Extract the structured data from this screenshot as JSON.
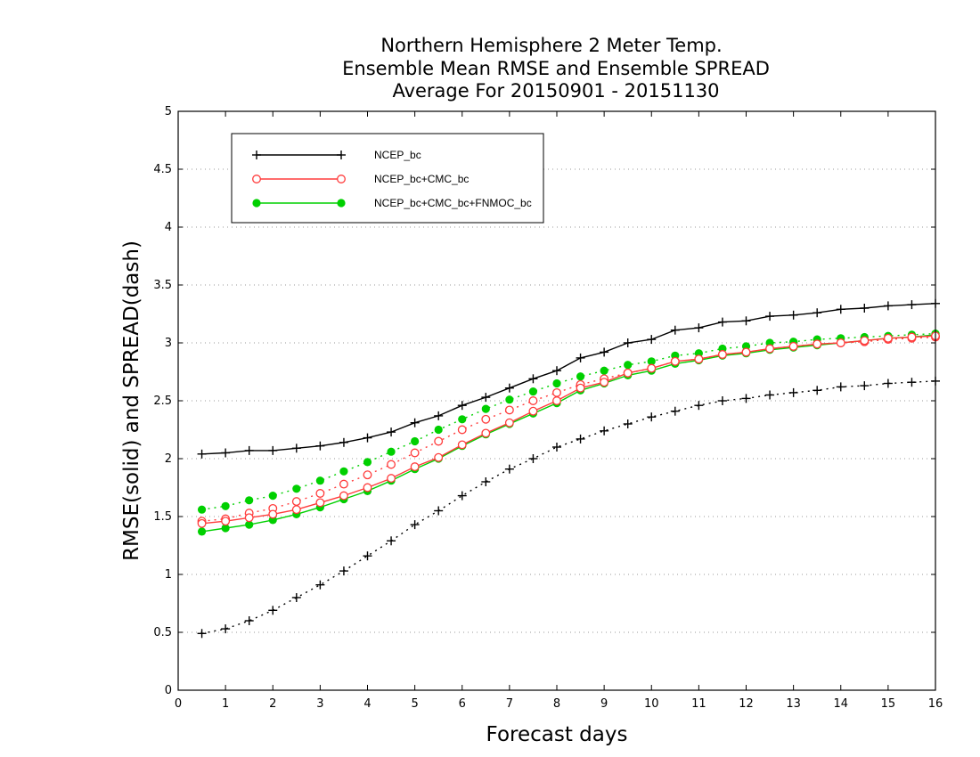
{
  "chart_data": {
    "type": "line",
    "title_lines": [
      "Northern Hemisphere 2 Meter Temp.",
      "Ensemble Mean RMSE and Ensemble SPREAD",
      "Average For 20150901 - 20151130"
    ],
    "xlabel": "Forecast days",
    "ylabel": "RMSE(solid) and SPREAD(dash)",
    "xlim": [
      0,
      16
    ],
    "ylim": [
      0,
      5
    ],
    "xticks": [
      "0",
      "1",
      "2",
      "3",
      "4",
      "5",
      "6",
      "7",
      "8",
      "9",
      "10",
      "11",
      "12",
      "13",
      "14",
      "15",
      "16"
    ],
    "yticks": [
      "0",
      "0.5",
      "1",
      "1.5",
      "2",
      "2.5",
      "3",
      "3.5",
      "4",
      "4.5",
      "5"
    ],
    "grid": "horizontal dotted",
    "legend_position": "top-left",
    "x": [
      0.5,
      1,
      1.5,
      2,
      2.5,
      3,
      3.5,
      4,
      4.5,
      5,
      5.5,
      6,
      6.5,
      7,
      7.5,
      8,
      8.5,
      9,
      9.5,
      10,
      10.5,
      11,
      11.5,
      12,
      12.5,
      13,
      13.5,
      14,
      14.5,
      15,
      15.5,
      16
    ],
    "series": [
      {
        "name": "NCEP_bc",
        "color": "#000000",
        "marker": "plus",
        "rmse": [
          2.04,
          2.05,
          2.07,
          2.07,
          2.09,
          2.11,
          2.14,
          2.18,
          2.23,
          2.31,
          2.37,
          2.46,
          2.53,
          2.61,
          2.69,
          2.76,
          2.87,
          2.92,
          3.0,
          3.03,
          3.11,
          3.13,
          3.18,
          3.19,
          3.23,
          3.24,
          3.26,
          3.29,
          3.3,
          3.32,
          3.33,
          3.34
        ],
        "spread": [
          0.49,
          0.53,
          0.6,
          0.69,
          0.8,
          0.91,
          1.03,
          1.16,
          1.29,
          1.43,
          1.55,
          1.68,
          1.8,
          1.91,
          2.0,
          2.1,
          2.17,
          2.24,
          2.3,
          2.36,
          2.41,
          2.46,
          2.5,
          2.52,
          2.55,
          2.57,
          2.59,
          2.62,
          2.63,
          2.65,
          2.66,
          2.67
        ]
      },
      {
        "name": "NCEP_bc+CMC_bc",
        "color": "#ff3b3b",
        "marker": "open-circle",
        "rmse": [
          1.44,
          1.46,
          1.49,
          1.52,
          1.56,
          1.62,
          1.68,
          1.75,
          1.83,
          1.93,
          2.01,
          2.12,
          2.22,
          2.31,
          2.41,
          2.5,
          2.61,
          2.66,
          2.74,
          2.78,
          2.84,
          2.86,
          2.9,
          2.92,
          2.95,
          2.97,
          2.99,
          3.0,
          3.02,
          3.04,
          3.05,
          3.06
        ],
        "spread": [
          1.46,
          1.48,
          1.53,
          1.57,
          1.63,
          1.7,
          1.78,
          1.86,
          1.95,
          2.05,
          2.15,
          2.25,
          2.34,
          2.42,
          2.5,
          2.57,
          2.64,
          2.69,
          2.74,
          2.78,
          2.84,
          2.86,
          2.9,
          2.92,
          2.95,
          2.97,
          2.99,
          3.0,
          3.01,
          3.03,
          3.04,
          3.05
        ]
      },
      {
        "name": "NCEP_bc+CMC_bc+FNMOC_bc",
        "color": "#00d000",
        "marker": "filled-circle",
        "rmse": [
          1.37,
          1.4,
          1.43,
          1.47,
          1.52,
          1.58,
          1.65,
          1.72,
          1.81,
          1.91,
          2.0,
          2.11,
          2.21,
          2.3,
          2.39,
          2.48,
          2.59,
          2.65,
          2.72,
          2.76,
          2.82,
          2.85,
          2.89,
          2.91,
          2.94,
          2.96,
          2.98,
          3.0,
          3.02,
          3.04,
          3.05,
          3.07
        ],
        "spread": [
          1.56,
          1.59,
          1.64,
          1.68,
          1.74,
          1.81,
          1.89,
          1.97,
          2.06,
          2.15,
          2.25,
          2.34,
          2.43,
          2.51,
          2.58,
          2.65,
          2.71,
          2.76,
          2.81,
          2.84,
          2.89,
          2.91,
          2.95,
          2.97,
          3.0,
          3.01,
          3.03,
          3.04,
          3.05,
          3.06,
          3.07,
          3.08
        ]
      }
    ]
  }
}
